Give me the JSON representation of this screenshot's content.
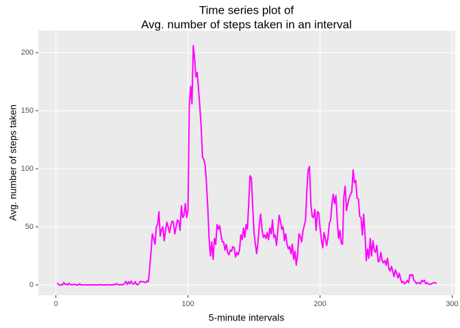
{
  "chart_data": {
    "type": "line",
    "title": [
      "Time series plot of",
      "Avg. number of steps taken in an interval"
    ],
    "xlabel": "5-minute intervals",
    "ylabel": "Avg. number of steps taken",
    "x": [
      1,
      2,
      3,
      4,
      5,
      6,
      7,
      8,
      9,
      10,
      11,
      12,
      13,
      14,
      15,
      16,
      17,
      18,
      19,
      20,
      21,
      22,
      23,
      24,
      25,
      26,
      27,
      28,
      29,
      30,
      31,
      32,
      33,
      34,
      35,
      36,
      37,
      38,
      39,
      40,
      41,
      42,
      43,
      44,
      45,
      46,
      47,
      48,
      49,
      50,
      51,
      52,
      53,
      54,
      55,
      56,
      57,
      58,
      59,
      60,
      61,
      62,
      63,
      64,
      65,
      66,
      67,
      68,
      69,
      70,
      71,
      72,
      73,
      74,
      75,
      76,
      77,
      78,
      79,
      80,
      81,
      82,
      83,
      84,
      85,
      86,
      87,
      88,
      89,
      90,
      91,
      92,
      93,
      94,
      95,
      96,
      97,
      98,
      99,
      100,
      101,
      102,
      103,
      104,
      105,
      106,
      107,
      108,
      109,
      110,
      111,
      112,
      113,
      114,
      115,
      116,
      117,
      118,
      119,
      120,
      121,
      122,
      123,
      124,
      125,
      126,
      127,
      128,
      129,
      130,
      131,
      132,
      133,
      134,
      135,
      136,
      137,
      138,
      139,
      140,
      141,
      142,
      143,
      144,
      145,
      146,
      147,
      148,
      149,
      150,
      151,
      152,
      153,
      154,
      155,
      156,
      157,
      158,
      159,
      160,
      161,
      162,
      163,
      164,
      165,
      166,
      167,
      168,
      169,
      170,
      171,
      172,
      173,
      174,
      175,
      176,
      177,
      178,
      179,
      180,
      181,
      182,
      183,
      184,
      185,
      186,
      187,
      188,
      189,
      190,
      191,
      192,
      193,
      194,
      195,
      196,
      197,
      198,
      199,
      200,
      201,
      202,
      203,
      204,
      205,
      206,
      207,
      208,
      209,
      210,
      211,
      212,
      213,
      214,
      215,
      216,
      217,
      218,
      219,
      220,
      221,
      222,
      223,
      224,
      225,
      226,
      227,
      228,
      229,
      230,
      231,
      232,
      233,
      234,
      235,
      236,
      237,
      238,
      239,
      240,
      241,
      242,
      243,
      244,
      245,
      246,
      247,
      248,
      249,
      250,
      251,
      252,
      253,
      254,
      255,
      256,
      257,
      258,
      259,
      260,
      261,
      262,
      263,
      264,
      265,
      266,
      267,
      268,
      269,
      270,
      271,
      272,
      273,
      274,
      275,
      276,
      277,
      278,
      279,
      280,
      281,
      282,
      283,
      284,
      285,
      286,
      287,
      288
    ],
    "series": [
      {
        "color": "#ff00ff",
        "values": [
          1.7,
          0.3,
          0.1,
          0.2,
          0.1,
          2.1,
          0.5,
          0.9,
          0,
          1.5,
          0.3,
          0.1,
          0.3,
          0.7,
          0,
          0.1,
          0,
          1.1,
          0,
          0,
          0.2,
          0.2,
          0,
          0,
          0,
          0,
          0,
          0.3,
          0.1,
          0,
          0,
          0,
          0.1,
          0.4,
          0,
          0,
          0.1,
          0,
          0.3,
          0.1,
          0,
          0.1,
          0,
          0.5,
          0.3,
          1.2,
          0.4,
          0,
          0.3,
          0.2,
          0.3,
          1.4,
          3.2,
          0.5,
          2.8,
          1,
          3.4,
          1.1,
          0.8,
          2.9,
          0.5,
          0.2,
          1.5,
          3.1,
          2.8,
          3,
          2.3,
          2,
          3.5,
          2.7,
          15,
          28,
          44,
          40,
          35,
          50,
          52,
          63,
          42,
          48,
          50,
          38,
          47,
          54,
          50,
          45,
          51,
          55,
          54,
          44,
          50,
          56,
          55,
          47,
          68,
          58,
          60,
          70,
          58,
          64,
          155,
          171,
          156,
          206,
          195,
          179,
          183,
          168,
          153,
          135,
          110,
          108,
          103,
          87,
          66,
          40,
          25,
          37,
          22,
          40,
          35,
          52,
          48,
          51,
          43,
          37,
          37,
          30,
          35,
          28,
          26,
          30,
          29,
          33,
          32,
          24,
          28,
          26,
          30,
          43,
          39,
          49,
          41,
          52,
          48,
          71,
          94,
          92,
          67,
          45,
          35,
          27,
          37,
          52,
          61,
          48,
          41,
          43,
          40,
          45,
          39,
          49,
          44,
          56,
          41,
          43,
          34,
          47,
          60,
          55,
          48,
          50,
          38,
          44,
          35,
          31,
          33,
          27,
          35,
          22,
          29,
          17,
          27,
          44,
          42,
          37,
          46,
          51,
          56,
          82,
          99,
          102,
          70,
          59,
          58,
          65,
          47,
          63,
          62,
          49,
          39,
          32,
          45,
          40,
          34,
          41,
          53,
          56,
          70,
          78,
          70,
          77,
          56,
          40,
          47,
          36,
          35,
          76,
          85,
          64,
          70,
          75,
          78,
          80,
          99,
          88,
          90,
          75,
          74,
          59,
          58,
          43,
          61,
          44,
          21,
          31,
          23,
          40,
          25,
          38,
          30,
          28,
          34,
          20,
          21,
          28,
          21,
          19,
          21,
          17,
          23,
          14,
          12,
          16,
          12,
          7,
          13,
          10,
          6,
          10,
          5,
          2,
          3,
          1,
          2,
          4,
          2,
          9,
          8,
          9,
          4,
          3,
          1,
          2,
          2,
          1,
          4,
          3,
          4,
          1,
          2,
          1,
          0.5,
          0.8,
          1.5,
          2,
          2.1,
          1.1
        ]
      }
    ],
    "xlim": [
      -13.3,
      302.3
    ],
    "ylim": [
      -8.8,
      218.8
    ],
    "xticks": [
      0,
      100,
      200,
      300
    ],
    "yticks": [
      0,
      50,
      100,
      150,
      200
    ],
    "grid": true
  }
}
